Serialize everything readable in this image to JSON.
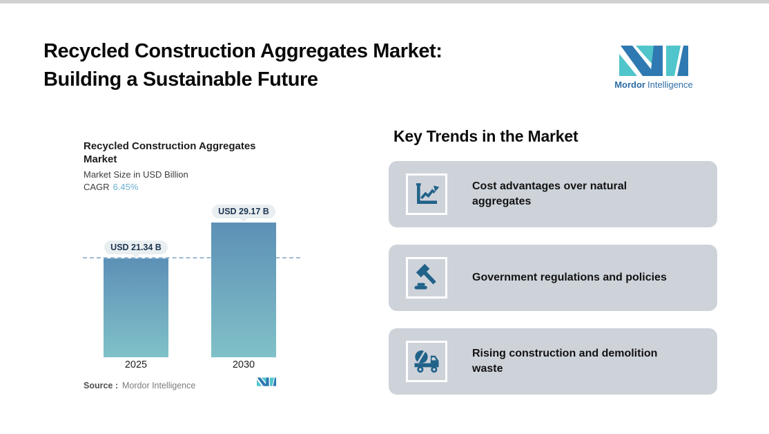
{
  "header": {
    "title_line1": "Recycled Construction Aggregates Market:",
    "title_line2": "Building a Sustainable Future"
  },
  "brand": {
    "name_bold": "Mordor",
    "name_light": "Intelligence"
  },
  "chart_data": {
    "type": "bar",
    "title": "Recycled Construction Aggregates Market",
    "subtitle": "Market Size in USD Billion",
    "cagr_label": "CAGR",
    "cagr_value": "6.45%",
    "categories": [
      "2025",
      "2030"
    ],
    "values": [
      21.34,
      29.17
    ],
    "unit": "USD Billion",
    "bar_labels": [
      "USD 21.34 B",
      "USD 29.17 B"
    ],
    "reference_line_value": 21.34,
    "ylim": [
      0,
      29.17
    ],
    "grid": false,
    "legend": "none",
    "source_label": "Source :",
    "source_value": "Mordor Intelligence"
  },
  "trends": {
    "heading": "Key Trends in the Market",
    "cards": [
      {
        "icon": "line-chart-icon",
        "label": "Cost advantages over natural aggregates"
      },
      {
        "icon": "gavel-icon",
        "label": "Government regulations and policies"
      },
      {
        "icon": "mixer-truck-icon",
        "label": "Rising construction and demolition waste"
      }
    ]
  },
  "colors": {
    "brand_teal": "#50C5CB",
    "brand_blue": "#2F79B2",
    "brand_text": "#2D6DA4",
    "icon": "#216289",
    "card_bg": "#CED3DA",
    "bar_top": "#5D90B6",
    "bar_bottom": "#80C1C8",
    "dash": "#9DBBD4",
    "pill_bg": "#E9EEF1",
    "pill_text": "#1C3550",
    "cagr_value": "#68AED0",
    "top_strip": "#D2D0D3"
  }
}
